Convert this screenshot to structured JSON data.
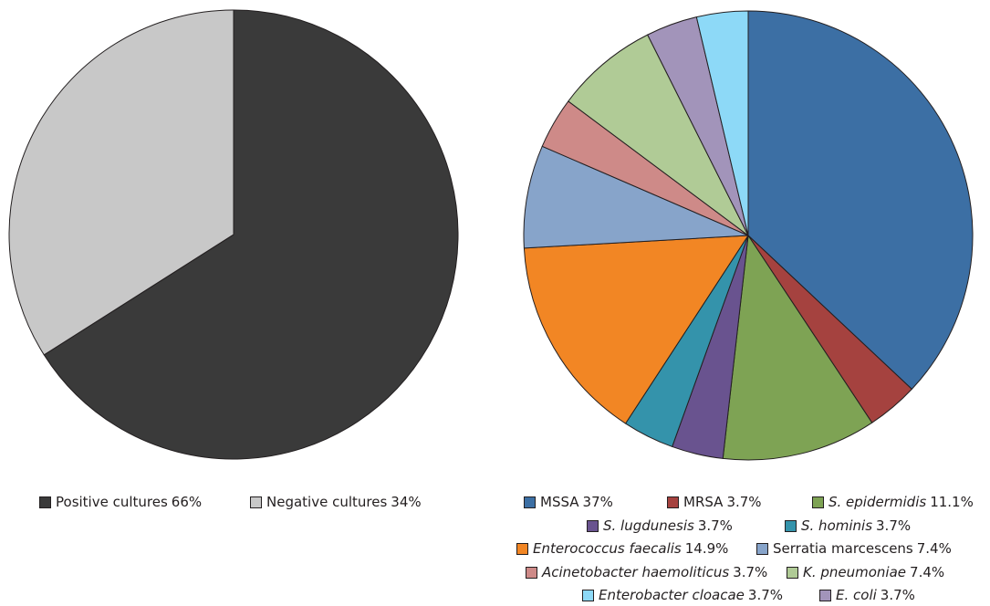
{
  "chart_data": [
    {
      "type": "pie",
      "title": "",
      "slices": [
        {
          "label": "Positive cultures",
          "value": 66,
          "percent_label": "66%",
          "color": "#3a3a3a",
          "italic": false
        },
        {
          "label": "Negative cultures",
          "value": 34,
          "percent_label": "34%",
          "color": "#c8c8c8",
          "italic": false
        }
      ]
    },
    {
      "type": "pie",
      "title": "",
      "slices": [
        {
          "label": "MSSA",
          "value": 37,
          "percent_label": "37%",
          "color": "#3c6fa4",
          "italic": false
        },
        {
          "label": "MRSA",
          "value": 3.7,
          "percent_label": "3.7%",
          "color": "#a5423f",
          "italic": false
        },
        {
          "label": "S. epidermidis",
          "value": 11.1,
          "percent_label": "11.1%",
          "color": "#7ea354",
          "italic": true
        },
        {
          "label": "S. lugdunesis",
          "value": 3.7,
          "percent_label": "3.7%",
          "color": "#69538f",
          "italic": true
        },
        {
          "label": "S. hominis",
          "value": 3.7,
          "percent_label": "3.7%",
          "color": "#3493ab",
          "italic": true
        },
        {
          "label": "Enterococcus faecalis",
          "value": 14.9,
          "percent_label": "14.9%",
          "color": "#f28624",
          "italic": true
        },
        {
          "label": "Serratia marcescens",
          "value": 7.4,
          "percent_label": "7.4%",
          "color": "#87a4ca",
          "italic": false
        },
        {
          "label": "Acinetobacter haemoliticus",
          "value": 3.7,
          "percent_label": "3.7%",
          "color": "#ce8a88",
          "italic": true
        },
        {
          "label": "K. pneumoniae",
          "value": 7.4,
          "percent_label": "7.4%",
          "color": "#b0cb96",
          "italic": true
        },
        {
          "label": "E. coli",
          "value": 3.7,
          "percent_label": "3.7%",
          "color": "#a294ba",
          "italic": true
        },
        {
          "label": "Enterobacter cloacae",
          "value": 3.7,
          "percent_label": "3.7%",
          "color": "#8dd9f7",
          "italic": true
        }
      ]
    }
  ]
}
